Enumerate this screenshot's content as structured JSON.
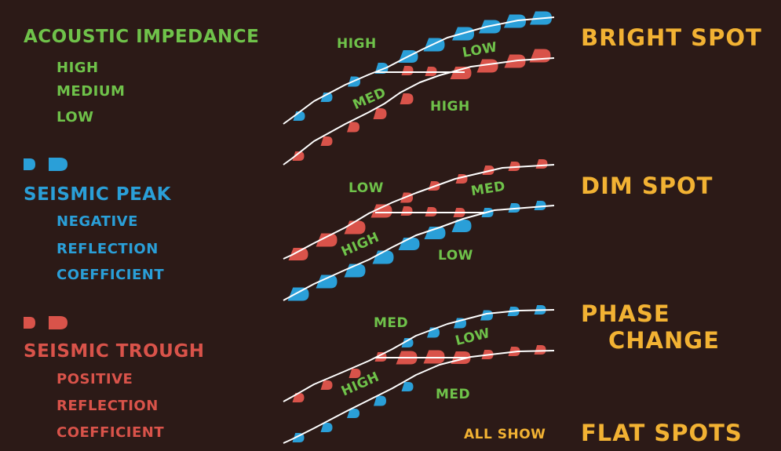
{
  "colors": {
    "background": "#2c1a17",
    "green": "#6fc24a",
    "blue": "#2a9fd8",
    "red": "#d9534a",
    "orange": "#f2b233",
    "line": "#ffffff"
  },
  "legend": {
    "impedance": {
      "title": "ACOUSTIC IMPEDANCE",
      "items": [
        "HIGH",
        "MEDIUM",
        "LOW"
      ]
    },
    "peak": {
      "title": "SEISMIC PEAK",
      "items": [
        "NEGATIVE",
        "REFLECTION",
        "COEFFICIENT"
      ],
      "symbol_color": "blue"
    },
    "trough": {
      "title": "SEISMIC TROUGH",
      "items": [
        "POSITIVE",
        "REFLECTION",
        "COEFFICIENT"
      ],
      "symbol_color": "red"
    }
  },
  "panels": {
    "bright": {
      "title": "BRIGHT SPOT",
      "labels": {
        "upper": "HIGH",
        "middle": "MED",
        "lower": "HIGH",
        "gas": "LOW"
      }
    },
    "dim": {
      "title": "DIM SPOT",
      "labels": {
        "upper": "LOW",
        "middle": "HIGH",
        "lower": "LOW",
        "gas": "MED"
      }
    },
    "phase": {
      "title_line1": "PHASE",
      "title_line2": "CHANGE",
      "labels": {
        "upper": "MED",
        "middle": "HIGH",
        "lower": "MED",
        "gas": "LOW"
      }
    }
  },
  "footer": {
    "prefix": "ALL SHOW",
    "title": "FLAT SPOTS"
  }
}
